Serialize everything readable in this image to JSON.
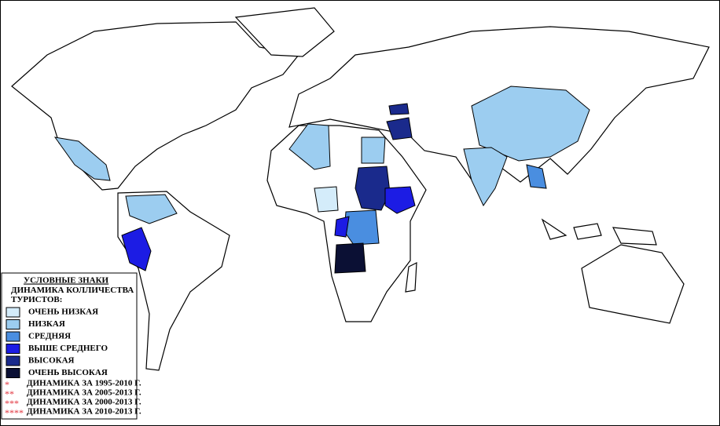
{
  "legend": {
    "title": "УСЛОВНЫЕ ЗНАКИ",
    "subtitle": "ДИНАМИКА КОЛЛИЧЕСТВА ТУРИСТОВ:",
    "items": [
      {
        "label": "ОЧЕНЬ НИЗКАЯ",
        "color": "#d4ecfa"
      },
      {
        "label": "НИЗКАЯ",
        "color": "#9ccdf0"
      },
      {
        "label": "СРЕДНЯЯ",
        "color": "#4a8ee0"
      },
      {
        "label": "ВЫШЕ СРЕДНЕГО",
        "color": "#1c1ce4"
      },
      {
        "label": "ВЫСОКАЯ",
        "color": "#1a2a8c"
      },
      {
        "label": "ОЧЕНЬ ВЫСОКАЯ",
        "color": "#0b1034"
      }
    ],
    "notes": [
      {
        "symbol": "*",
        "label": "ДИНАМИКА ЗА 1995-2010 Г."
      },
      {
        "symbol": "**",
        "label": "ДИНАМИКА ЗА 2005-2013 Г."
      },
      {
        "symbol": "***",
        "label": "ДИНАМИКА ЗА 2000-2013 Г."
      },
      {
        "symbol": "****",
        "label": "ДИНАМИКА ЗА 2010-2013 Г."
      }
    ]
  }
}
